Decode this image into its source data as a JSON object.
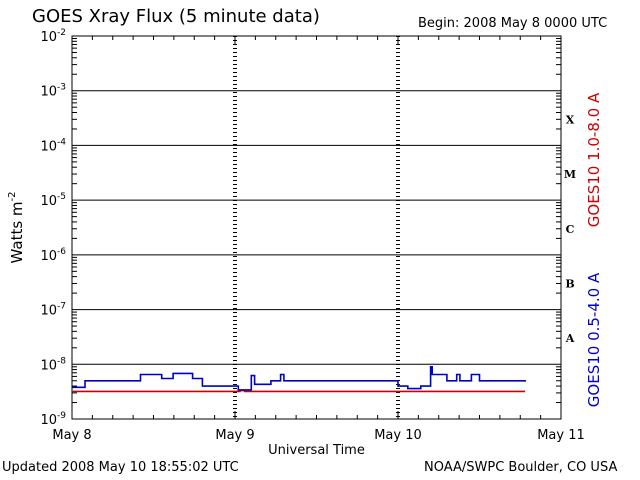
{
  "header": {
    "title": "GOES Xray Flux (5 minute data)",
    "begin": "Begin:  2008 May 8 0000 UTC"
  },
  "footer": {
    "updated": "Updated 2008 May 10 18:55:02 UTC",
    "credit": "NOAA/SWPC Boulder, CO USA"
  },
  "colors": {
    "long_channel": "#cc0000",
    "short_channel": "#0000cc",
    "frame": "#000000"
  },
  "chart_data": {
    "type": "line",
    "title": "GOES Xray Flux (5 minute data)",
    "xlabel": "Universal Time",
    "ylabel": "Watts m",
    "ylabel_exp": "-2",
    "y_scale": "log",
    "ylim": [
      1e-09,
      0.01
    ],
    "xlim": [
      0,
      3
    ],
    "x_tick_labels": [
      "May 8",
      "May 9",
      "May 10",
      "May 11"
    ],
    "y_ticks": [
      {
        "base": "10",
        "exp": "-2",
        "value": 0.01
      },
      {
        "base": "10",
        "exp": "-3",
        "value": 0.001
      },
      {
        "base": "10",
        "exp": "-4",
        "value": 0.0001
      },
      {
        "base": "10",
        "exp": "-5",
        "value": 1e-05
      },
      {
        "base": "10",
        "exp": "-6",
        "value": 1e-06
      },
      {
        "base": "10",
        "exp": "-7",
        "value": 1e-07
      },
      {
        "base": "10",
        "exp": "-8",
        "value": 1e-08
      },
      {
        "base": "10",
        "exp": "-9",
        "value": 1e-09
      }
    ],
    "flare_classes": [
      {
        "label": "X",
        "value": 0.0003
      },
      {
        "label": "M",
        "value": 3e-05
      },
      {
        "label": "C",
        "value": 3e-06
      },
      {
        "label": "B",
        "value": 3e-07
      },
      {
        "label": "A",
        "value": 3e-08
      }
    ],
    "grid": true,
    "x_unit": "days since May 8 0000 UTC",
    "series": [
      {
        "name": "GOES10 1.0-8.0 A",
        "color": "#cc0000",
        "x": [
          0.0,
          0.5,
          1.0,
          1.03,
          1.06,
          1.5,
          2.0,
          2.05,
          2.78
        ],
        "y": [
          3.2e-09,
          3.2e-09,
          3.2e-09,
          3.3e-09,
          3.2e-09,
          3.2e-09,
          3.2e-09,
          3.2e-09,
          3.2e-09
        ]
      },
      {
        "name": "GOES10 0.5-4.0 A",
        "color": "#0000cc",
        "x": [
          0.0,
          0.06,
          0.08,
          0.2,
          0.38,
          0.42,
          0.52,
          0.55,
          0.62,
          0.66,
          0.74,
          0.8,
          0.92,
          1.02,
          1.08,
          1.1,
          1.12,
          1.22,
          1.28,
          1.3,
          1.35,
          1.5,
          1.7,
          1.9,
          2.0,
          2.06,
          2.14,
          2.18,
          2.2,
          2.21,
          2.26,
          2.3,
          2.36,
          2.38,
          2.45,
          2.5,
          2.6,
          2.7,
          2.78
        ],
        "y": [
          3.8e-09,
          3.8e-09,
          5e-09,
          5e-09,
          5e-09,
          6.5e-09,
          6.5e-09,
          5.5e-09,
          6.8e-09,
          6.8e-09,
          5.5e-09,
          4e-09,
          4e-09,
          3.4e-09,
          3.4e-09,
          6.2e-09,
          4.3e-09,
          5e-09,
          6.5e-09,
          5e-09,
          5e-09,
          5e-09,
          5e-09,
          5e-09,
          4e-09,
          3.6e-09,
          4e-09,
          4e-09,
          9e-09,
          6.5e-09,
          6.5e-09,
          5e-09,
          6.5e-09,
          5e-09,
          6.5e-09,
          5e-09,
          5e-09,
          5e-09,
          4.8e-09
        ]
      }
    ]
  }
}
